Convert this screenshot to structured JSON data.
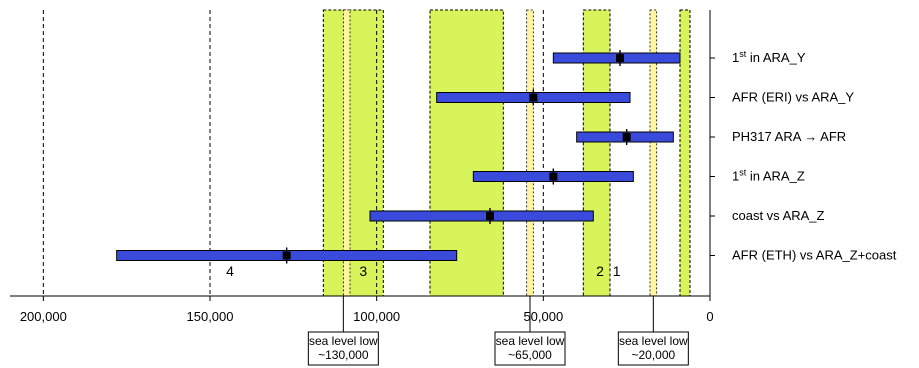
{
  "chart_data": {
    "type": "bar",
    "orientation": "horizontal-range",
    "x_axis": {
      "reversed": true,
      "ticks": [
        200000,
        150000,
        100000,
        50000,
        0
      ],
      "tick_labels": [
        "200,000",
        "150,000",
        "100,000",
        "50,000",
        "0"
      ],
      "range": [
        0,
        210000
      ]
    },
    "series": [
      {
        "label_main": "1",
        "label_sup": "st",
        "label_rest": " in ARA_Y",
        "low": 9000,
        "high": 47000,
        "point": 27000
      },
      {
        "label_main": "AFR (ERI) vs ARA_Y",
        "label_sup": "",
        "label_rest": "",
        "low": 24000,
        "high": 82000,
        "point": 53000
      },
      {
        "label_main": "PH317 ARA → AFR",
        "label_sup": "",
        "label_rest": "",
        "low": 11000,
        "high": 40000,
        "point": 25000
      },
      {
        "label_main": "1",
        "label_sup": "st",
        "label_rest": " in ARA_Z",
        "low": 23000,
        "high": 71000,
        "point": 47000
      },
      {
        "label_main": "coast vs ARA_Z",
        "label_sup": "",
        "label_rest": "",
        "low": 35000,
        "high": 102000,
        "point": 66000
      },
      {
        "label_main": "AFR (ETH) vs ARA_Z+coast",
        "label_sup": "",
        "label_rest": "",
        "low": 76000,
        "high": 178000,
        "point": 127000
      }
    ],
    "green_zones": [
      {
        "x_high": 116000,
        "x_low": 98000
      },
      {
        "x_high": 84000,
        "x_low": 62000
      },
      {
        "x_high": 38000,
        "x_low": 30000
      },
      {
        "x_high": 9000,
        "x_low": 6000
      }
    ],
    "yellow_zones": [
      {
        "x_high": 110000,
        "x_low": 108000
      },
      {
        "x_high": 55000,
        "x_low": 53000
      },
      {
        "x_high": 18000,
        "x_low": 16000
      }
    ],
    "zone_labels": [
      {
        "text": "4",
        "x": 144000
      },
      {
        "text": "3",
        "x": 104000
      },
      {
        "text": "2",
        "x": 33000
      },
      {
        "text": "1",
        "x": 28000
      }
    ],
    "annotations": [
      {
        "line1": "sea level low",
        "line2": "~130,000",
        "x": 110000
      },
      {
        "line1": "sea level low",
        "line2": "~65,000",
        "x": 54000
      },
      {
        "line1": "sea level low",
        "line2": "~20,000",
        "x": 17000
      }
    ],
    "colors": {
      "bar": "#3a4bdc",
      "bar_border": "#000000",
      "green": "#d7f55a",
      "yellow": "#fff4a1",
      "point": "#000000"
    }
  }
}
